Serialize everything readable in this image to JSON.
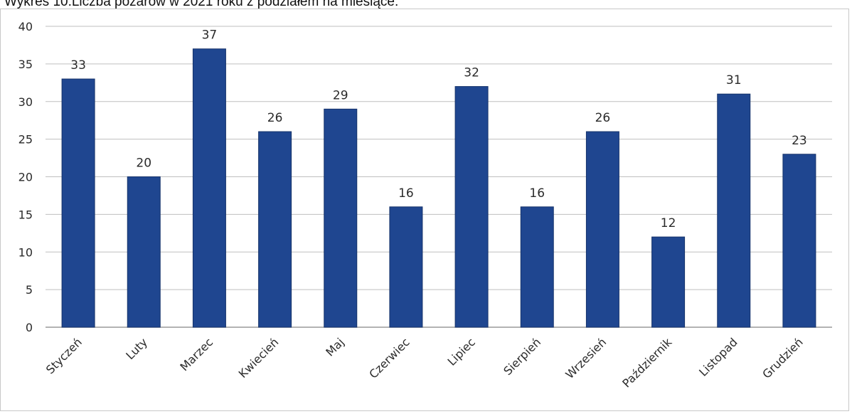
{
  "caption": "Wykres 10.Liczba pożarów w 2021 roku z podziałem na miesiące.",
  "colors": {
    "bar": "#1f4690",
    "bar_edge": "#16336b",
    "grid": "#bfbfbf",
    "axis": "#9a9a9a"
  },
  "chart_data": {
    "type": "bar",
    "categories": [
      "Styczeń",
      "Luty",
      "Marzec",
      "Kwiecień",
      "Maj",
      "Czerwiec",
      "Lipiec",
      "Sierpień",
      "Wrzesień",
      "Październik",
      "Listopad",
      "Grudzień"
    ],
    "values": [
      33,
      20,
      37,
      26,
      29,
      16,
      32,
      16,
      26,
      12,
      31,
      23
    ],
    "title": "",
    "xlabel": "",
    "ylabel": "",
    "ylim": [
      0,
      40
    ],
    "yticks": [
      0,
      5,
      10,
      15,
      20,
      25,
      30,
      35,
      40
    ],
    "grid": true,
    "data_labels": true
  }
}
